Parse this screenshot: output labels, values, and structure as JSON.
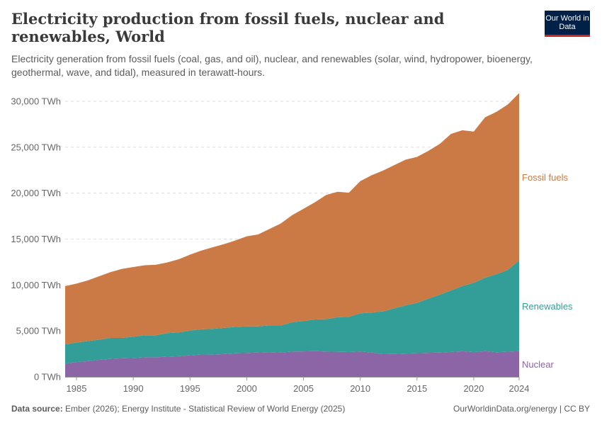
{
  "header": {
    "title": "Electricity production from fossil fuels, nuclear and renewables, World",
    "subtitle": "Electricity generation from fossil fuels (coal, gas, and oil), nuclear, and renewables (solar, wind, hydropower, bioenergy, geothermal, wave, and tidal), measured in terawatt-hours.",
    "logo_text": "Our World in Data"
  },
  "footer": {
    "source_label": "Data source:",
    "source_text": "Ember (2026); Energy Institute - Statistical Review of World Energy (2025)",
    "right_text": "OurWorldinData.org/energy | CC BY"
  },
  "chart_data": {
    "type": "area",
    "stacked": true,
    "title": "Electricity production from fossil fuels, nuclear and renewables, World",
    "xlabel": "",
    "ylabel": "",
    "ylim": [
      0,
      30900
    ],
    "xlim": [
      1984,
      2024
    ],
    "grid": "horizontal dashed",
    "legend_placement": "right (inline labels)",
    "y_ticks": [
      0,
      5000,
      10000,
      15000,
      20000,
      25000,
      30000
    ],
    "y_tick_labels": [
      "0 TWh",
      "5,000 TWh",
      "10,000 TWh",
      "15,000 TWh",
      "20,000 TWh",
      "25,000 TWh",
      "30,000 TWh"
    ],
    "x_ticks": [
      1985,
      1990,
      1995,
      2000,
      2005,
      2010,
      2015,
      2020,
      2024
    ],
    "x_tick_labels": [
      "1985",
      "1990",
      "1995",
      "2000",
      "2005",
      "2010",
      "2015",
      "2020",
      "2024"
    ],
    "x": [
      1984,
      1985,
      1986,
      1987,
      1988,
      1989,
      1990,
      1991,
      1992,
      1993,
      1994,
      1995,
      1996,
      1997,
      1998,
      1999,
      2000,
      2001,
      2002,
      2003,
      2004,
      2005,
      2006,
      2007,
      2008,
      2009,
      2010,
      2011,
      2012,
      2013,
      2014,
      2015,
      2016,
      2017,
      2018,
      2019,
      2020,
      2021,
      2022,
      2023,
      2024
    ],
    "series": [
      {
        "name": "Nuclear",
        "color": "#8c65a6",
        "values": [
          1440,
          1610,
          1710,
          1850,
          1960,
          2010,
          2050,
          2130,
          2130,
          2200,
          2250,
          2340,
          2430,
          2420,
          2480,
          2560,
          2590,
          2650,
          2700,
          2640,
          2750,
          2770,
          2800,
          2750,
          2730,
          2700,
          2760,
          2650,
          2470,
          2490,
          2540,
          2570,
          2610,
          2640,
          2710,
          2790,
          2690,
          2800,
          2680,
          2740,
          2800
        ]
      },
      {
        "name": "Renewables",
        "color": "#339e97",
        "values": [
          2100,
          2130,
          2180,
          2200,
          2280,
          2230,
          2320,
          2400,
          2400,
          2560,
          2580,
          2700,
          2750,
          2800,
          2850,
          2880,
          2900,
          2840,
          2900,
          2950,
          3200,
          3300,
          3450,
          3530,
          3760,
          3840,
          4150,
          4350,
          4650,
          4970,
          5250,
          5480,
          5900,
          6300,
          6700,
          7100,
          7550,
          8000,
          8500,
          8900,
          9900
        ]
      },
      {
        "name": "Fossil fuels",
        "color": "#cc7a45",
        "values": [
          6330,
          6410,
          6610,
          6900,
          7160,
          7510,
          7580,
          7620,
          7670,
          7690,
          7970,
          8260,
          8570,
          8880,
          9120,
          9410,
          9810,
          10010,
          10500,
          11110,
          11650,
          12230,
          12750,
          13520,
          13660,
          13510,
          14390,
          14950,
          15330,
          15590,
          15860,
          15900,
          16090,
          16410,
          17040,
          16960,
          16460,
          17450,
          17670,
          18010,
          18200
        ]
      }
    ]
  }
}
